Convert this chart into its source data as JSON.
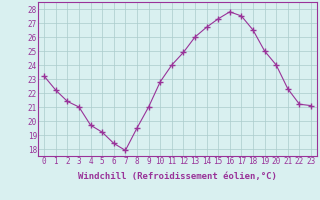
{
  "x": [
    0,
    1,
    2,
    3,
    4,
    5,
    6,
    7,
    8,
    9,
    10,
    11,
    12,
    13,
    14,
    15,
    16,
    17,
    18,
    19,
    20,
    21,
    22,
    23
  ],
  "y": [
    23.2,
    22.2,
    21.4,
    21.0,
    19.7,
    19.2,
    18.4,
    17.9,
    19.5,
    21.0,
    22.8,
    24.0,
    24.9,
    26.0,
    26.7,
    27.3,
    27.8,
    27.5,
    26.5,
    25.0,
    24.0,
    22.3,
    21.2,
    21.1
  ],
  "line_color": "#993399",
  "marker": "+",
  "marker_size": 4,
  "bg_color": "#d9f0f0",
  "grid_color": "#aacccc",
  "xlabel": "Windchill (Refroidissement éolien,°C)",
  "xlabel_color": "#993399",
  "tick_color": "#993399",
  "ylim": [
    17.5,
    28.5
  ],
  "yticks": [
    18,
    19,
    20,
    21,
    22,
    23,
    24,
    25,
    26,
    27,
    28
  ],
  "xticks": [
    0,
    1,
    2,
    3,
    4,
    5,
    6,
    7,
    8,
    9,
    10,
    11,
    12,
    13,
    14,
    15,
    16,
    17,
    18,
    19,
    20,
    21,
    22,
    23
  ],
  "spine_color": "#993399",
  "tick_fontsize": 5.5,
  "xlabel_fontsize": 6.5
}
